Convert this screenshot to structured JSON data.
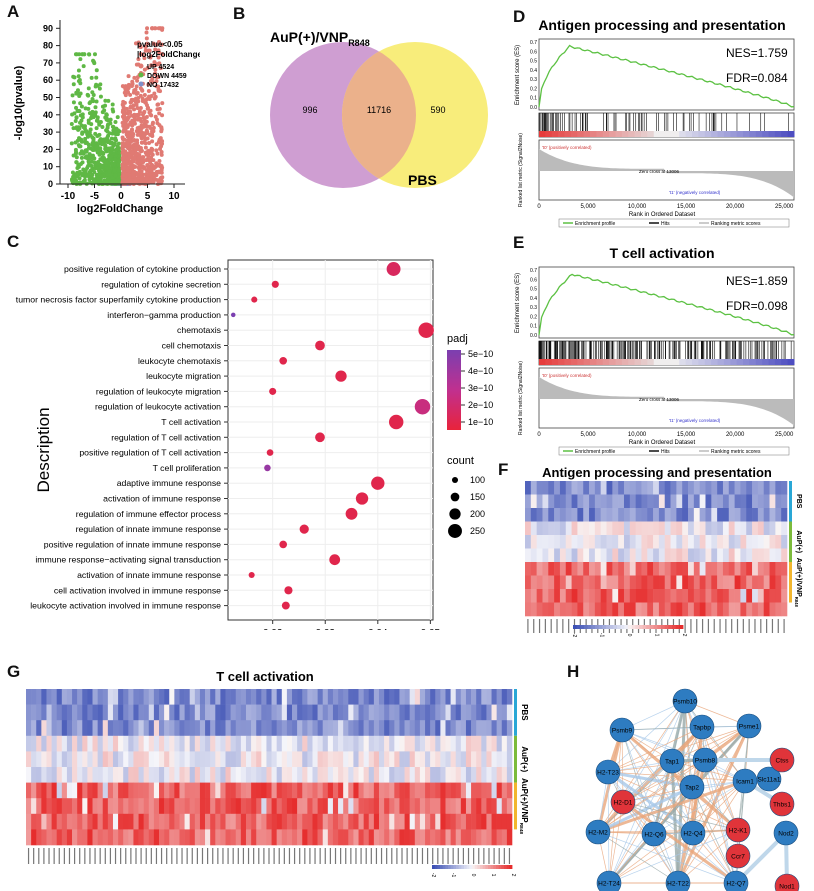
{
  "panels": {
    "A": "A",
    "B": "B",
    "C": "C",
    "D": "D",
    "E": "E",
    "F": "F",
    "G": "G",
    "H": "H"
  },
  "volcano": {
    "xlabel": "log2FoldChange",
    "ylabel": "-log10(pvalue)",
    "legend_title1": "pvalue<0.05",
    "legend_title2": "|log2FoldChange|>0",
    "legend": [
      {
        "label": "UP 4524",
        "color": "#e07a73"
      },
      {
        "label": "DOWN 4459",
        "color": "#5fb845"
      },
      {
        "label": "NO 17432",
        "color": "#7f8fc9"
      }
    ],
    "x_ticks": [
      "-10",
      "-5",
      "0",
      "5",
      "10"
    ],
    "y_ticks": [
      "0",
      "10",
      "20",
      "30",
      "40",
      "50",
      "60",
      "70",
      "80",
      "90"
    ]
  },
  "venn": {
    "left_label": "AuP(+)/VNP",
    "left_sub": "R848",
    "right_label": "PBS",
    "left_only": "996",
    "overlap": "11716",
    "right_only": "590",
    "left_color": "#cf9ed2",
    "right_color": "#f8ed7b",
    "overlap_color": "#ebb18b"
  },
  "dotplot": {
    "ylabel": "Description",
    "x_ticks": [
      "0.02",
      "0.03",
      "0.04",
      "0.05"
    ],
    "terms": [
      {
        "label": "positive regulation of cytokine production",
        "gene_ratio": 0.043,
        "padj": 1e-10,
        "count": 250
      },
      {
        "label": "regulation of cytokine secretion",
        "gene_ratio": 0.0205,
        "padj": 5e-11,
        "count": 120
      },
      {
        "label": "tumor necrosis factor superfamily cytokine production",
        "gene_ratio": 0.0165,
        "padj": 5e-11,
        "count": 100
      },
      {
        "label": "interferon−gamma production",
        "gene_ratio": 0.0125,
        "padj": 5e-10,
        "count": 70
      },
      {
        "label": "chemotaxis",
        "gene_ratio": 0.0492,
        "padj": 5e-11,
        "count": 280
      },
      {
        "label": "cell chemotaxis",
        "gene_ratio": 0.029,
        "padj": 5e-11,
        "count": 170
      },
      {
        "label": "leukocyte chemotaxis",
        "gene_ratio": 0.022,
        "padj": 5e-11,
        "count": 130
      },
      {
        "label": "leukocyte migration",
        "gene_ratio": 0.033,
        "padj": 5e-11,
        "count": 200
      },
      {
        "label": "regulation of leukocyte migration",
        "gene_ratio": 0.02,
        "padj": 5e-11,
        "count": 120
      },
      {
        "label": "regulation of leukocyte activation",
        "gene_ratio": 0.0485,
        "padj": 2e-10,
        "count": 280
      },
      {
        "label": "T cell activation",
        "gene_ratio": 0.0435,
        "padj": 5e-11,
        "count": 260
      },
      {
        "label": "regulation of T cell activation",
        "gene_ratio": 0.029,
        "padj": 5e-11,
        "count": 170
      },
      {
        "label": "positive regulation of T cell activation",
        "gene_ratio": 0.0195,
        "padj": 5e-11,
        "count": 110
      },
      {
        "label": "T cell proliferation",
        "gene_ratio": 0.019,
        "padj": 4e-10,
        "count": 110
      },
      {
        "label": "adaptive immune response",
        "gene_ratio": 0.04,
        "padj": 5e-11,
        "count": 240
      },
      {
        "label": "activation of immune response",
        "gene_ratio": 0.037,
        "padj": 5e-11,
        "count": 220
      },
      {
        "label": "regulation of immune effector process",
        "gene_ratio": 0.035,
        "padj": 5e-11,
        "count": 210
      },
      {
        "label": "regulation of innate immune response",
        "gene_ratio": 0.026,
        "padj": 5e-11,
        "count": 160
      },
      {
        "label": "positive regulation of innate immune response",
        "gene_ratio": 0.022,
        "padj": 5e-11,
        "count": 130
      },
      {
        "label": "immune response−activating signal transduction",
        "gene_ratio": 0.0318,
        "padj": 5e-11,
        "count": 190
      },
      {
        "label": "activation of innate immune response",
        "gene_ratio": 0.016,
        "padj": 5e-11,
        "count": 100
      },
      {
        "label": "cell activation involved in immune response",
        "gene_ratio": 0.023,
        "padj": 5e-11,
        "count": 140
      },
      {
        "label": "leukocyte activation involved in immune response",
        "gene_ratio": 0.0225,
        "padj": 5e-11,
        "count": 135
      }
    ],
    "padj_title": "padj",
    "padj_ticks": [
      "5e−10",
      "4e−10",
      "3e−10",
      "2e−10",
      "1e−10"
    ],
    "count_title": "count",
    "count_ticks": [
      "100",
      "150",
      "200",
      "250"
    ]
  },
  "gsea_d": {
    "title": "Antigen processing and presentation",
    "nes": "NES=1.759",
    "fdr": "FDR=0.084",
    "es_ylabel": "Enrichment score (ES)",
    "rank_ylabel": "Ranked list metric (Signal2Noise)",
    "xlabel": "Rank in Ordered Dataset",
    "pos_label": "'t0' (positively correlated)",
    "neg_label": "'t1' (negatively correlated)",
    "zero_cross": "Zero cross at 13006",
    "x_ticks": [
      "0",
      "5,000",
      "10,000",
      "15,000",
      "20,000",
      "25,000"
    ],
    "es_ticks": [
      "0.7",
      "0.6",
      "0.5",
      "0.4",
      "0.3",
      "0.2",
      "0.1",
      "0.0"
    ],
    "legend": [
      "Enrichment profile",
      "Hits",
      "Ranking metric scores"
    ]
  },
  "gsea_e": {
    "title": "T cell activation",
    "nes": "NES=1.859",
    "fdr": "FDR=0.098",
    "es_ylabel": "Enrichment score (ES)",
    "rank_ylabel": "Ranked list metric (Signal2Noise)",
    "xlabel": "Rank in Ordered Dataset",
    "pos_label": "'t0' (positively correlated)",
    "neg_label": "'t1' (negatively correlated)",
    "zero_cross": "Zero cross at 13006",
    "x_ticks": [
      "0",
      "5,000",
      "10,000",
      "15,000",
      "20,000",
      "25,000"
    ],
    "es_ticks": [
      "0.7",
      "0.6",
      "0.5",
      "0.4",
      "0.3",
      "0.2",
      "0.1",
      "0.0"
    ],
    "legend": [
      "Enrichment profile",
      "Hits",
      "Ranking metric scores"
    ]
  },
  "heatmap_f": {
    "title": "Antigen processing and presentation",
    "groups": [
      "PBS",
      "AuP(+)",
      "AuP(+)/VNP"
    ],
    "group_sub": "R848",
    "scale": [
      "-2",
      "-1",
      "0",
      "1",
      "2"
    ]
  },
  "heatmap_g": {
    "title": "T cell activation",
    "groups": [
      "PBS",
      "AuP(+)",
      "AuP(+)/VNP"
    ],
    "group_sub": "R848",
    "scale": [
      "-2",
      "-1",
      "0",
      "1",
      "2"
    ]
  },
  "network": {
    "nodes": [
      {
        "id": "Psmb10",
        "color": "blue"
      },
      {
        "id": "Psmb8",
        "color": "blue"
      },
      {
        "id": "Tap1",
        "color": "blue"
      },
      {
        "id": "Tap2",
        "color": "blue"
      },
      {
        "id": "Tapbp",
        "color": "blue"
      },
      {
        "id": "Psme1",
        "color": "blue"
      },
      {
        "id": "Psmb9",
        "color": "blue"
      },
      {
        "id": "Icam1",
        "color": "blue"
      },
      {
        "id": "H2-T23",
        "color": "blue"
      },
      {
        "id": "H2-M2",
        "color": "blue"
      },
      {
        "id": "H2-Q6",
        "color": "blue"
      },
      {
        "id": "H2-Q4",
        "color": "blue"
      },
      {
        "id": "H2-T24",
        "color": "blue"
      },
      {
        "id": "H2-T22",
        "color": "blue"
      },
      {
        "id": "H2-Q7",
        "color": "blue"
      },
      {
        "id": "Nod2",
        "color": "blue"
      },
      {
        "id": "Slc11a1",
        "color": "blue"
      },
      {
        "id": "H2-D1",
        "color": "red"
      },
      {
        "id": "Ctss",
        "color": "red"
      },
      {
        "id": "Thbs1",
        "color": "red"
      },
      {
        "id": "H2-K1",
        "color": "red"
      },
      {
        "id": "Ccr7",
        "color": "red"
      },
      {
        "id": "Nod1",
        "color": "red"
      }
    ]
  }
}
